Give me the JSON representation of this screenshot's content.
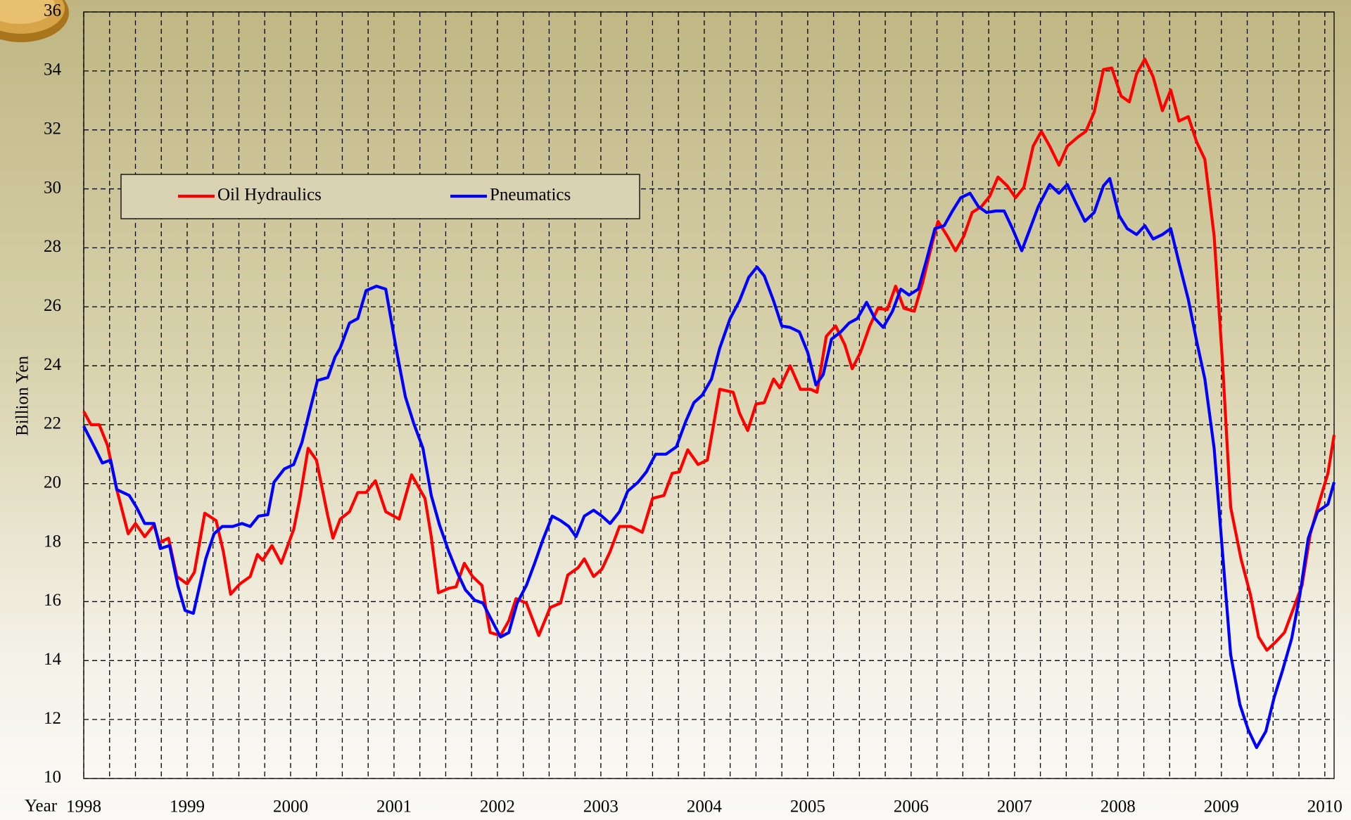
{
  "chart_data": {
    "type": "line",
    "xlabel": "Year",
    "ylabel": "Billion Yen",
    "xlim": [
      1998,
      2010.09
    ],
    "xticks": [
      1998,
      1999,
      2000,
      2001,
      2002,
      2003,
      2004,
      2005,
      2006,
      2007,
      2008,
      2009,
      2010
    ],
    "x_minor_per_tick": 4,
    "ylim": [
      10,
      36
    ],
    "yticks": [
      10,
      12,
      14,
      16,
      18,
      20,
      22,
      24,
      26,
      28,
      30,
      32,
      34,
      36
    ],
    "grid": true,
    "legend": "upper left",
    "series": [
      {
        "name": "Oil Hydraulics",
        "color": "#ff0000",
        "x": [
          1998.0,
          1998.07,
          1998.15,
          1998.23,
          1998.32,
          1998.43,
          1998.5,
          1998.59,
          1998.68,
          1998.73,
          1998.82,
          1998.9,
          1999.0,
          1999.07,
          1999.17,
          1999.28,
          1999.35,
          1999.42,
          1999.51,
          1999.61,
          1999.68,
          1999.73,
          1999.82,
          1999.91,
          2000.03,
          2000.09,
          2000.17,
          2000.25,
          2000.36,
          2000.41,
          2000.48,
          2000.57,
          2000.65,
          2000.73,
          2000.82,
          2000.92,
          2001.05,
          2001.17,
          2001.3,
          2001.36,
          2001.43,
          2001.53,
          2001.6,
          2001.68,
          2001.76,
          2001.85,
          2001.93,
          2002.03,
          2002.11,
          2002.18,
          2002.28,
          2002.4,
          2002.51,
          2002.61,
          2002.68,
          2002.78,
          2002.84,
          2002.93,
          2003.01,
          2003.09,
          2003.18,
          2003.29,
          2003.4,
          2003.5,
          2003.61,
          2003.69,
          2003.76,
          2003.84,
          2003.94,
          2004.03,
          2004.15,
          2004.28,
          2004.34,
          2004.42,
          2004.5,
          2004.58,
          2004.67,
          2004.73,
          2004.83,
          2004.93,
          2005.03,
          2005.09,
          2005.18,
          2005.27,
          2005.36,
          2005.43,
          2005.51,
          2005.6,
          2005.68,
          2005.77,
          2005.85,
          2005.93,
          2006.03,
          2006.11,
          2006.2,
          2006.26,
          2006.35,
          2006.43,
          2006.51,
          2006.59,
          2006.68,
          2006.76,
          2006.84,
          2006.93,
          2007.01,
          2007.09,
          2007.18,
          2007.26,
          2007.34,
          2007.43,
          2007.51,
          2007.61,
          2007.69,
          2007.77,
          2007.86,
          2007.94,
          2008.03,
          2008.11,
          2008.18,
          2008.26,
          2008.34,
          2008.43,
          2008.51,
          2008.59,
          2008.68,
          2008.76,
          2008.84,
          2008.93,
          2009.01,
          2009.09,
          2009.19,
          2009.28,
          2009.36,
          2009.44,
          2009.53,
          2009.61,
          2009.69,
          2009.78,
          2009.86,
          2009.94,
          2010.03,
          2010.09
        ],
        "values": [
          22.45,
          22.0,
          22.0,
          21.3,
          19.8,
          18.3,
          18.65,
          18.2,
          18.6,
          18.0,
          18.15,
          16.85,
          16.6,
          17.0,
          19.0,
          18.75,
          17.7,
          16.25,
          16.6,
          16.85,
          17.6,
          17.4,
          17.9,
          17.3,
          18.45,
          19.5,
          21.2,
          20.8,
          18.9,
          18.15,
          18.8,
          19.05,
          19.7,
          19.7,
          20.1,
          19.05,
          18.8,
          20.3,
          19.5,
          18.2,
          16.3,
          16.45,
          16.5,
          17.3,
          16.85,
          16.55,
          14.95,
          14.85,
          15.35,
          16.1,
          15.95,
          14.85,
          15.8,
          15.95,
          16.9,
          17.15,
          17.45,
          16.85,
          17.1,
          17.7,
          18.55,
          18.55,
          18.35,
          19.5,
          19.6,
          20.35,
          20.4,
          21.15,
          20.65,
          20.8,
          23.2,
          23.1,
          22.4,
          21.8,
          22.7,
          22.75,
          23.55,
          23.25,
          24.0,
          23.2,
          23.2,
          23.1,
          25.0,
          25.35,
          24.7,
          23.9,
          24.45,
          25.35,
          25.95,
          25.9,
          26.7,
          25.95,
          25.85,
          26.8,
          28.1,
          28.9,
          28.4,
          27.9,
          28.4,
          29.2,
          29.4,
          29.75,
          30.4,
          30.1,
          29.7,
          30.05,
          31.45,
          31.95,
          31.45,
          30.8,
          31.45,
          31.75,
          31.95,
          32.6,
          34.05,
          34.1,
          33.15,
          32.95,
          33.9,
          34.4,
          33.8,
          32.65,
          33.35,
          32.3,
          32.45,
          31.6,
          31.0,
          28.4,
          24.15,
          19.2,
          17.45,
          16.25,
          14.8,
          14.35,
          14.65,
          14.95,
          15.7,
          16.55,
          18.3,
          19.3,
          20.35,
          21.65
        ]
      },
      {
        "name": "Pneumatics",
        "color": "#0000ff",
        "x": [
          1998.0,
          1998.11,
          1998.18,
          1998.26,
          1998.32,
          1998.44,
          1998.51,
          1998.59,
          1998.68,
          1998.74,
          1998.83,
          1998.91,
          1998.98,
          1999.06,
          1999.18,
          1999.26,
          1999.34,
          1999.44,
          1999.53,
          1999.61,
          1999.69,
          1999.78,
          1999.84,
          1999.94,
          2000.03,
          2000.11,
          2000.18,
          2000.26,
          2000.36,
          2000.43,
          2000.48,
          2000.57,
          2000.65,
          2000.73,
          2000.83,
          2000.92,
          2001.03,
          2001.11,
          2001.19,
          2001.28,
          2001.36,
          2001.44,
          2001.53,
          2001.61,
          2001.69,
          2001.78,
          2001.86,
          2001.94,
          2002.03,
          2002.11,
          2002.19,
          2002.28,
          2002.36,
          2002.44,
          2002.53,
          2002.61,
          2002.69,
          2002.76,
          2002.84,
          2002.93,
          2003.01,
          2003.09,
          2003.18,
          2003.26,
          2003.36,
          2003.44,
          2003.53,
          2003.63,
          2003.73,
          2003.82,
          2003.9,
          2003.98,
          2004.07,
          2004.15,
          2004.25,
          2004.34,
          2004.43,
          2004.51,
          2004.58,
          2004.67,
          2004.75,
          2004.83,
          2004.92,
          2005.0,
          2005.08,
          2005.15,
          2005.23,
          2005.32,
          2005.4,
          2005.48,
          2005.57,
          2005.65,
          2005.73,
          2005.82,
          2005.9,
          2005.98,
          2006.07,
          2006.15,
          2006.23,
          2006.32,
          2006.4,
          2006.48,
          2006.57,
          2006.65,
          2006.73,
          2006.82,
          2006.9,
          2006.98,
          2007.07,
          2007.15,
          2007.23,
          2007.34,
          2007.43,
          2007.51,
          2007.59,
          2007.68,
          2007.77,
          2007.86,
          2007.92,
          2008.01,
          2008.09,
          2008.18,
          2008.26,
          2008.34,
          2008.43,
          2008.51,
          2008.59,
          2008.68,
          2008.76,
          2008.84,
          2008.93,
          2009.01,
          2009.09,
          2009.18,
          2009.26,
          2009.34,
          2009.43,
          2009.51,
          2009.59,
          2009.68,
          2009.76,
          2009.84,
          2009.93,
          2010.03,
          2010.09
        ],
        "values": [
          21.95,
          21.2,
          20.7,
          20.8,
          19.8,
          19.6,
          19.2,
          18.65,
          18.65,
          17.8,
          17.9,
          16.55,
          15.7,
          15.6,
          17.45,
          18.3,
          18.55,
          18.55,
          18.65,
          18.55,
          18.9,
          18.95,
          20.05,
          20.5,
          20.65,
          21.4,
          22.4,
          23.5,
          23.6,
          24.3,
          24.6,
          25.45,
          25.6,
          26.55,
          26.7,
          26.6,
          24.4,
          22.95,
          22.05,
          21.2,
          19.6,
          18.6,
          17.7,
          17.0,
          16.4,
          16.05,
          15.95,
          15.4,
          14.8,
          14.95,
          15.95,
          16.55,
          17.3,
          18.1,
          18.9,
          18.75,
          18.55,
          18.2,
          18.9,
          19.1,
          18.9,
          18.65,
          19.05,
          19.75,
          20.05,
          20.4,
          21.0,
          21.0,
          21.25,
          22.1,
          22.75,
          23.0,
          23.55,
          24.6,
          25.6,
          26.2,
          27.0,
          27.35,
          27.05,
          26.2,
          25.35,
          25.3,
          25.15,
          24.45,
          23.35,
          23.7,
          24.9,
          25.15,
          25.45,
          25.6,
          26.15,
          25.6,
          25.3,
          25.85,
          26.6,
          26.4,
          26.6,
          27.6,
          28.65,
          28.75,
          29.25,
          29.7,
          29.85,
          29.4,
          29.2,
          29.25,
          29.25,
          28.65,
          27.9,
          28.65,
          29.4,
          30.15,
          29.85,
          30.15,
          29.55,
          28.9,
          29.2,
          30.1,
          30.35,
          29.1,
          28.65,
          28.45,
          28.75,
          28.3,
          28.45,
          28.65,
          27.5,
          26.25,
          24.85,
          23.55,
          21.2,
          17.7,
          14.2,
          12.5,
          11.65,
          11.05,
          11.6,
          12.75,
          13.65,
          14.75,
          16.25,
          18.15,
          19.05,
          19.3,
          20.05
        ]
      }
    ]
  }
}
